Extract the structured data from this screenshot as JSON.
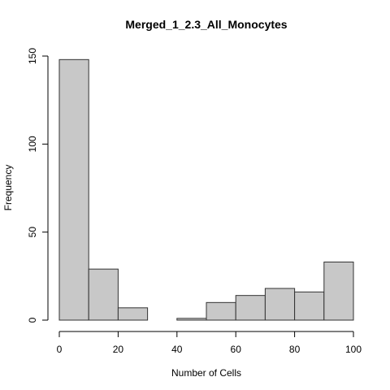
{
  "chart_data": {
    "type": "bar",
    "title": "Merged_1_2.3_All_Monocytes",
    "xlabel": "Number of Cells",
    "ylabel": "Frequency",
    "bins": [
      {
        "start": 0,
        "end": 10,
        "count": 148
      },
      {
        "start": 10,
        "end": 20,
        "count": 29
      },
      {
        "start": 20,
        "end": 30,
        "count": 7
      },
      {
        "start": 30,
        "end": 40,
        "count": 0
      },
      {
        "start": 40,
        "end": 50,
        "count": 1
      },
      {
        "start": 50,
        "end": 60,
        "count": 10
      },
      {
        "start": 60,
        "end": 70,
        "count": 14
      },
      {
        "start": 70,
        "end": 80,
        "count": 18
      },
      {
        "start": 80,
        "end": 90,
        "count": 16
      },
      {
        "start": 90,
        "end": 100,
        "count": 33
      }
    ],
    "xlim": [
      0,
      100
    ],
    "ylim": [
      0,
      150
    ],
    "x_ticks": [
      "0",
      "20",
      "40",
      "60",
      "80",
      "100"
    ],
    "y_ticks": [
      "0",
      "50",
      "100",
      "150"
    ],
    "grid": false,
    "colors": {
      "bar_fill": "#c8c8c8",
      "bar_stroke": "#333333",
      "axis": "#000000",
      "background": "#ffffff"
    }
  }
}
